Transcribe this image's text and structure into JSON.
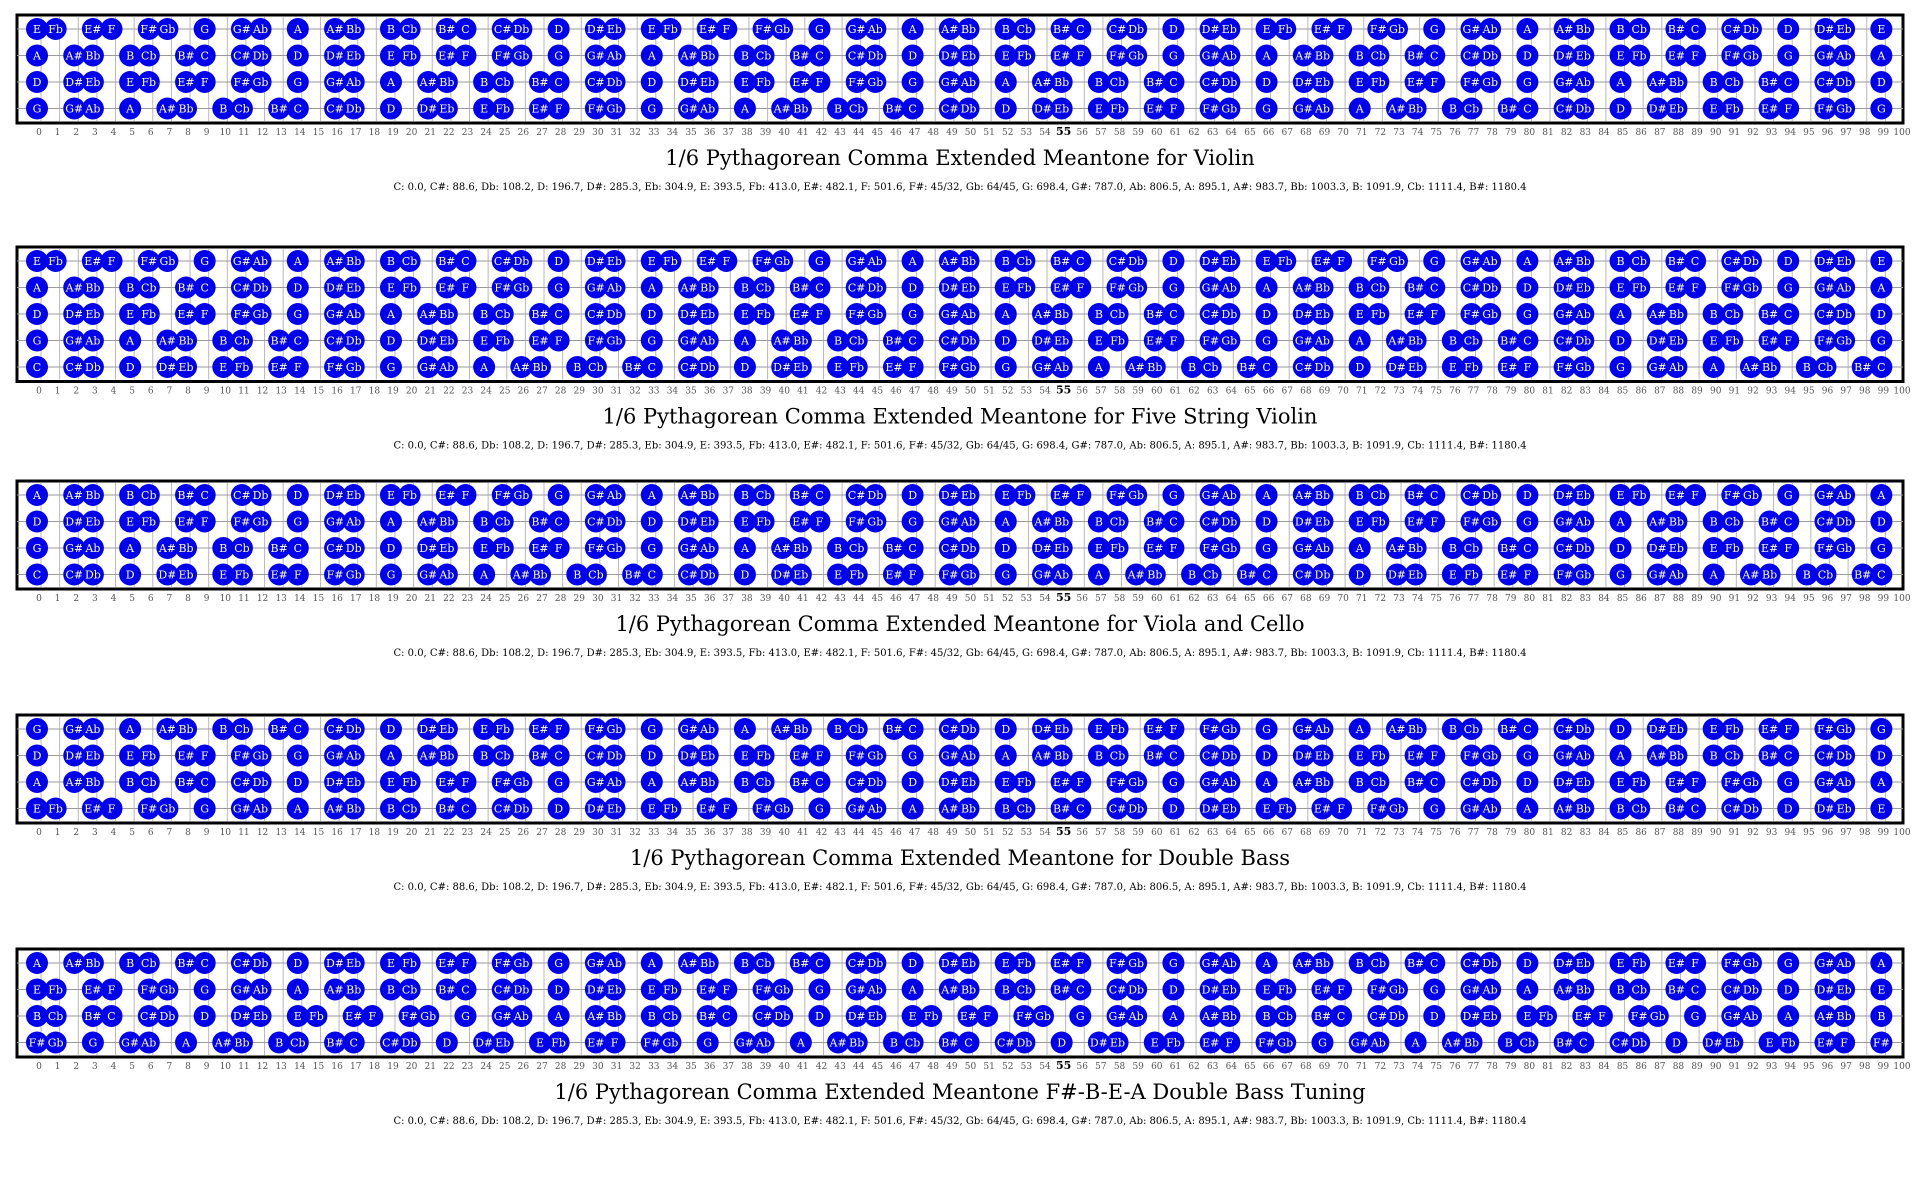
{
  "diagram": {
    "colors": {
      "note_fill": "#0000ee",
      "note_text": "#ffffff",
      "frame": "#000000",
      "fret_line": "#b8b8b8",
      "string_line": "#9a9a9a",
      "fret_number": "#555555",
      "title": "#000000"
    },
    "tuning_info": "C: 0.0, C#: 88.6, Db: 108.2, D: 196.7, D#: 285.3, Eb: 304.9, E: 393.5, Fb: 413.0, E#: 482.1, F: 501.6, F#: 45/32, Gb: 64/45, G: 698.4, G#: 787.0, Ab: 806.5, A: 895.1, A#: 983.7, Bb: 1003.3, B: 1091.9, Cb: 1111.4, B#: 1180.4",
    "fret_numbers": [
      "0",
      "1",
      "2",
      "3",
      "4",
      "5",
      "6",
      "7",
      "8",
      "9",
      "10",
      "11",
      "12",
      "13",
      "14",
      "15",
      "16",
      "17",
      "18",
      "19",
      "20",
      "21",
      "22",
      "23",
      "24",
      "25",
      "26",
      "27",
      "28",
      "29",
      "30",
      "31",
      "32",
      "33",
      "34",
      "35",
      "36",
      "37",
      "38",
      "39",
      "40",
      "41",
      "42",
      "43",
      "44",
      "45",
      "46",
      "47",
      "48",
      "49",
      "50",
      "51",
      "52",
      "53",
      "54",
      "55",
      "56",
      "57",
      "58",
      "59",
      "60",
      "61",
      "62",
      "63",
      "64",
      "65",
      "66",
      "67",
      "68",
      "69",
      "70",
      "71",
      "72",
      "73",
      "74",
      "75",
      "76",
      "77",
      "78",
      "79",
      "80",
      "81",
      "82",
      "83",
      "84",
      "85",
      "86",
      "87",
      "88",
      "89",
      "90",
      "91",
      "92",
      "93",
      "94",
      "95",
      "96",
      "97",
      "98",
      "99",
      "100"
    ],
    "highlighted_fret": "55",
    "note_sequence": [
      "C",
      "",
      "C#",
      "Db",
      "",
      "D",
      "",
      "D#",
      "Eb",
      "",
      "E",
      "Fb",
      "",
      "E#",
      "F",
      "",
      "F#",
      "Gb",
      "",
      "G",
      "",
      "G#",
      "Ab",
      "",
      "A",
      "",
      "A#",
      "Bb",
      "",
      "B",
      "Cb",
      "",
      "B#"
    ],
    "panels": [
      {
        "title": "1/6 Pythagorean Comma Extended Meantone for Violin",
        "strings": [
          {
            "open": "E"
          },
          {
            "open": "A"
          },
          {
            "open": "D"
          },
          {
            "open": "G"
          }
        ]
      },
      {
        "title": "1/6 Pythagorean Comma Extended Meantone for Five String Violin",
        "strings": [
          {
            "open": "E"
          },
          {
            "open": "A"
          },
          {
            "open": "D"
          },
          {
            "open": "G"
          },
          {
            "open": "C"
          }
        ]
      },
      {
        "title": "1/6 Pythagorean Comma Extended Meantone for Viola and Cello",
        "strings": [
          {
            "open": "A"
          },
          {
            "open": "D"
          },
          {
            "open": "G"
          },
          {
            "open": "C"
          }
        ]
      },
      {
        "title": "1/6 Pythagorean Comma Extended Meantone for Double Bass",
        "strings": [
          {
            "open": "G"
          },
          {
            "open": "D"
          },
          {
            "open": "A"
          },
          {
            "open": "E"
          }
        ]
      },
      {
        "title": "1/6 Pythagorean Comma Extended Meantone F#-B-E-A Double Bass Tuning",
        "strings": [
          {
            "open": "A"
          },
          {
            "open": "E"
          },
          {
            "open": "B"
          },
          {
            "open": "F#"
          }
        ]
      }
    ]
  }
}
